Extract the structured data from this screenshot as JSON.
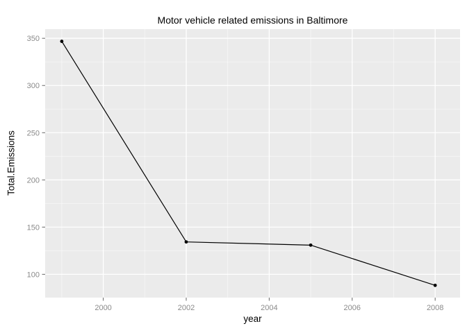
{
  "chart_data": {
    "type": "line",
    "title": "Motor vehicle related emissions in Baltimore",
    "xlabel": "year",
    "ylabel": "Total.Emissions",
    "x": [
      1999,
      2002,
      2005,
      2008
    ],
    "values": [
      346.8,
      134.3,
      130.9,
      88.3
    ],
    "series_name": "Total.Emissions",
    "xlim": [
      1998.6,
      2008.6
    ],
    "ylim": [
      75.3,
      359.7
    ],
    "x_major_ticks": [
      2000,
      2002,
      2004,
      2006,
      2008
    ],
    "x_minor_ticks": [
      1999,
      2001,
      2003,
      2005,
      2007
    ],
    "y_major_ticks": [
      100,
      150,
      200,
      250,
      300,
      350
    ],
    "y_minor_ticks": [
      125,
      175,
      225,
      275,
      325
    ],
    "grid": true,
    "legend_position": "none",
    "colors": {
      "background": "#ffffff",
      "panel_bg": "#ebebeb",
      "grid_major": "#ffffff",
      "grid_minor": "#ffffff",
      "line": "#000000",
      "point": "#000000",
      "tick_label": "#8a8a8a",
      "tick_mark": "#666666",
      "title": "#000000"
    }
  }
}
